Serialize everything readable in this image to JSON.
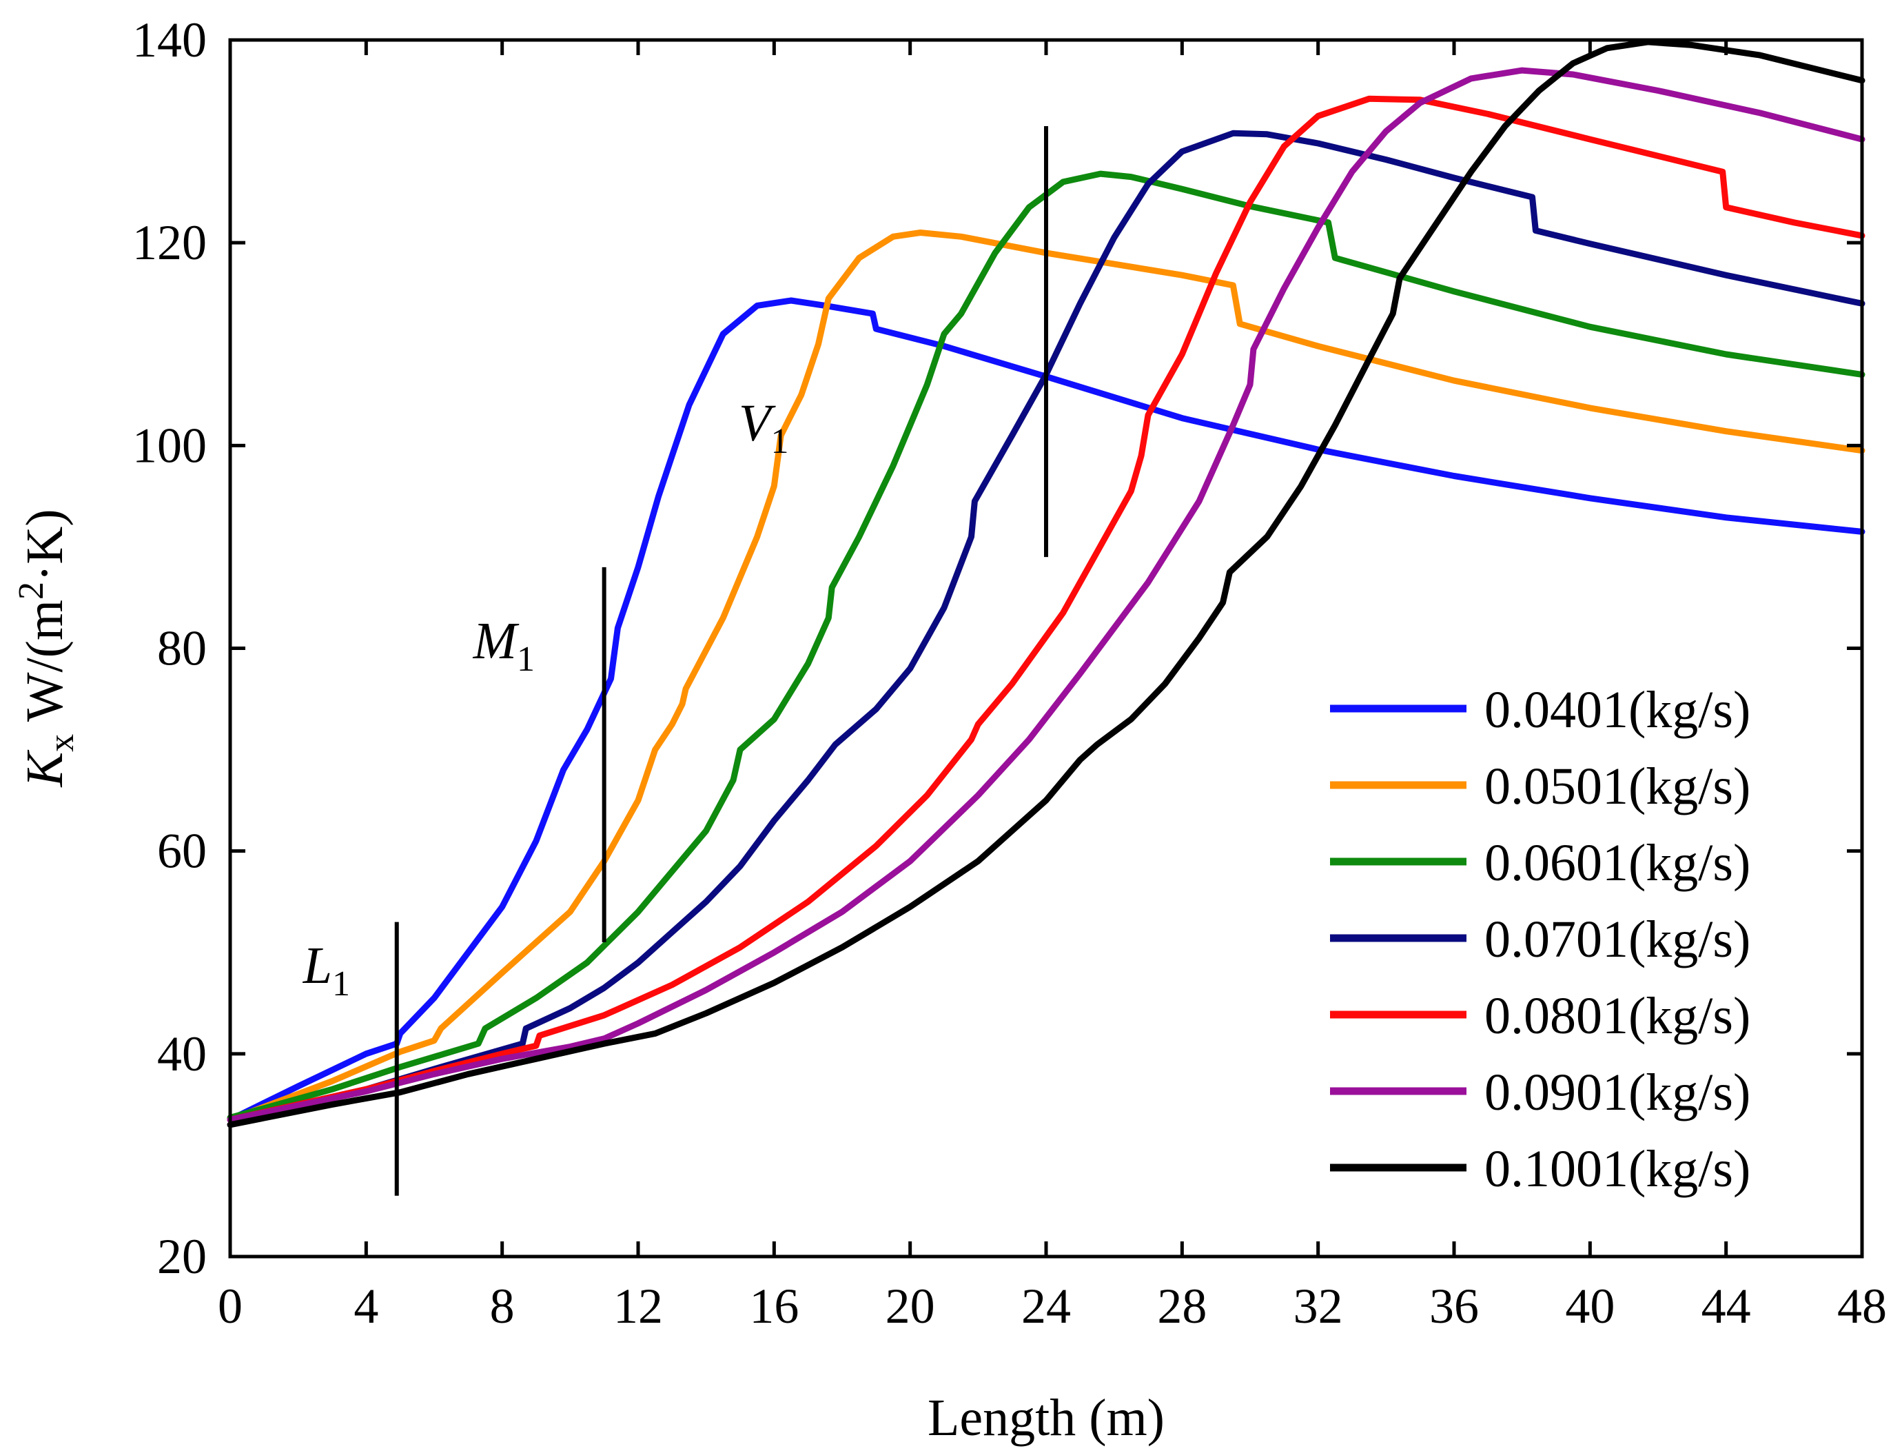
{
  "chart_data": {
    "type": "line",
    "title": "",
    "xlabel": "Length (m)",
    "ylabel": {
      "main": "K",
      "sub": "x",
      "unit_prefix": " W/(m",
      "sup": "2",
      "unit_suffix": "·K)"
    },
    "xlim": [
      0,
      48
    ],
    "ylim": [
      20,
      140
    ],
    "xticks": [
      0,
      4,
      8,
      12,
      16,
      20,
      24,
      28,
      32,
      36,
      40,
      44,
      48
    ],
    "yticks": [
      20,
      40,
      60,
      80,
      100,
      120,
      140
    ],
    "grid": false,
    "legend_position": "bottom-right",
    "series": [
      {
        "name": "0.0401(kg/s)",
        "color": "#1010ff",
        "points": [
          [
            0,
            33.5
          ],
          [
            2,
            36.8
          ],
          [
            4,
            40
          ],
          [
            4.9,
            41
          ],
          [
            5,
            42
          ],
          [
            6,
            45.5
          ],
          [
            7,
            50
          ],
          [
            8,
            54.5
          ],
          [
            9,
            61
          ],
          [
            9.8,
            68
          ],
          [
            10.5,
            72
          ],
          [
            11.2,
            77
          ],
          [
            11.4,
            82
          ],
          [
            12,
            88
          ],
          [
            12.6,
            95
          ],
          [
            13,
            99
          ],
          [
            13.5,
            104
          ],
          [
            14.5,
            111
          ],
          [
            15.5,
            113.8
          ],
          [
            16.5,
            114.3
          ],
          [
            17.5,
            113.8
          ],
          [
            18.9,
            113
          ],
          [
            19,
            111.5
          ],
          [
            21,
            109.8
          ],
          [
            24,
            106.8
          ],
          [
            28,
            102.7
          ],
          [
            32,
            99.6
          ],
          [
            36,
            97
          ],
          [
            40,
            94.8
          ],
          [
            44,
            92.9
          ],
          [
            48,
            91.5
          ]
        ]
      },
      {
        "name": "0.0501(kg/s)",
        "color": "#ff9000",
        "points": [
          [
            0,
            33.5
          ],
          [
            3,
            37.3
          ],
          [
            5,
            40.2
          ],
          [
            6,
            41.3
          ],
          [
            6.2,
            42.5
          ],
          [
            8,
            48
          ],
          [
            10,
            54
          ],
          [
            11,
            59
          ],
          [
            12,
            65
          ],
          [
            12.5,
            70
          ],
          [
            13,
            72.5
          ],
          [
            13.3,
            74.5
          ],
          [
            13.4,
            76
          ],
          [
            14.5,
            83
          ],
          [
            15.5,
            91
          ],
          [
            16,
            96
          ],
          [
            16.2,
            101
          ],
          [
            16.8,
            105
          ],
          [
            17.3,
            110
          ],
          [
            17.6,
            114.5
          ],
          [
            18.5,
            118.5
          ],
          [
            19.5,
            120.6
          ],
          [
            20.3,
            121
          ],
          [
            21.5,
            120.6
          ],
          [
            24,
            119
          ],
          [
            28,
            116.8
          ],
          [
            29.5,
            115.8
          ],
          [
            29.7,
            112
          ],
          [
            32,
            109.8
          ],
          [
            36,
            106.4
          ],
          [
            40,
            103.7
          ],
          [
            44,
            101.4
          ],
          [
            48,
            99.5
          ]
        ]
      },
      {
        "name": "0.0601(kg/s)",
        "color": "#0e8a0e",
        "points": [
          [
            0,
            33.7
          ],
          [
            3,
            36.5
          ],
          [
            5,
            38.7
          ],
          [
            7.3,
            41
          ],
          [
            7.5,
            42.5
          ],
          [
            9,
            45.5
          ],
          [
            10.5,
            49
          ],
          [
            12,
            54
          ],
          [
            13,
            58
          ],
          [
            14,
            62
          ],
          [
            14.8,
            67
          ],
          [
            15,
            70
          ],
          [
            16,
            73
          ],
          [
            17,
            78.5
          ],
          [
            17.6,
            83
          ],
          [
            17.7,
            86
          ],
          [
            18.5,
            91
          ],
          [
            19.5,
            98
          ],
          [
            20.5,
            106
          ],
          [
            21,
            111
          ],
          [
            21.5,
            113
          ],
          [
            22.5,
            119
          ],
          [
            23.5,
            123.5
          ],
          [
            24.5,
            126
          ],
          [
            25.6,
            126.8
          ],
          [
            26.5,
            126.5
          ],
          [
            28,
            125.3
          ],
          [
            30,
            123.6
          ],
          [
            32.3,
            122
          ],
          [
            32.5,
            118.5
          ],
          [
            36,
            115.2
          ],
          [
            40,
            111.7
          ],
          [
            44,
            109
          ],
          [
            48,
            107
          ]
        ]
      },
      {
        "name": "0.0701(kg/s)",
        "color": "#0a0a80",
        "points": [
          [
            0,
            33.5
          ],
          [
            4,
            36.5
          ],
          [
            6,
            38.5
          ],
          [
            8.6,
            41
          ],
          [
            8.7,
            42.5
          ],
          [
            10,
            44.5
          ],
          [
            11,
            46.5
          ],
          [
            12,
            49
          ],
          [
            13,
            52
          ],
          [
            14,
            55
          ],
          [
            15,
            58.5
          ],
          [
            16,
            63
          ],
          [
            17,
            67
          ],
          [
            17.8,
            70.5
          ],
          [
            19,
            74
          ],
          [
            20,
            78
          ],
          [
            21,
            84
          ],
          [
            21.8,
            91
          ],
          [
            21.9,
            94.5
          ],
          [
            23,
            101
          ],
          [
            24,
            107
          ],
          [
            25,
            114
          ],
          [
            26,
            120.5
          ],
          [
            27,
            125.8
          ],
          [
            28,
            129
          ],
          [
            29.5,
            130.8
          ],
          [
            30.5,
            130.7
          ],
          [
            32,
            129.8
          ],
          [
            34,
            128.2
          ],
          [
            36,
            126.4
          ],
          [
            38.3,
            124.5
          ],
          [
            38.4,
            121.2
          ],
          [
            40,
            119.9
          ],
          [
            44,
            116.8
          ],
          [
            48,
            114
          ]
        ]
      },
      {
        "name": "0.0801(kg/s)",
        "color": "#ff0a0a",
        "points": [
          [
            0,
            33.5
          ],
          [
            4,
            36.5
          ],
          [
            6,
            38.3
          ],
          [
            8,
            40
          ],
          [
            9,
            40.8
          ],
          [
            9.1,
            41.8
          ],
          [
            11,
            43.8
          ],
          [
            13,
            46.8
          ],
          [
            15,
            50.5
          ],
          [
            17,
            55
          ],
          [
            19,
            60.5
          ],
          [
            20.5,
            65.5
          ],
          [
            21.8,
            71
          ],
          [
            22,
            72.5
          ],
          [
            23,
            76.5
          ],
          [
            24.5,
            83.5
          ],
          [
            25.5,
            89.5
          ],
          [
            26.5,
            95.5
          ],
          [
            26.8,
            99
          ],
          [
            27,
            103
          ],
          [
            28,
            109
          ],
          [
            29,
            117
          ],
          [
            30,
            124
          ],
          [
            31,
            129.5
          ],
          [
            32,
            132.5
          ],
          [
            33.5,
            134.2
          ],
          [
            35,
            134.1
          ],
          [
            37,
            132.7
          ],
          [
            40,
            130.2
          ],
          [
            43.9,
            127
          ],
          [
            44,
            123.5
          ],
          [
            46,
            122
          ],
          [
            48,
            120.7
          ]
        ]
      },
      {
        "name": "0.0901(kg/s)",
        "color": "#9a109a",
        "points": [
          [
            0,
            33.5
          ],
          [
            4,
            36.3
          ],
          [
            6,
            38
          ],
          [
            8,
            39.5
          ],
          [
            10,
            40.7
          ],
          [
            11,
            41.5
          ],
          [
            12,
            43
          ],
          [
            14,
            46.3
          ],
          [
            16,
            50
          ],
          [
            18,
            54
          ],
          [
            20,
            59
          ],
          [
            22,
            65.5
          ],
          [
            23.5,
            71
          ],
          [
            25,
            77.5
          ],
          [
            27,
            86.5
          ],
          [
            28.5,
            94.5
          ],
          [
            29.5,
            102
          ],
          [
            30,
            106
          ],
          [
            30.1,
            109.5
          ],
          [
            31,
            115.5
          ],
          [
            32,
            121.5
          ],
          [
            33,
            127
          ],
          [
            34,
            131
          ],
          [
            35,
            133.8
          ],
          [
            36.5,
            136.2
          ],
          [
            38,
            137
          ],
          [
            39.5,
            136.6
          ],
          [
            42,
            135
          ],
          [
            45,
            132.8
          ],
          [
            48,
            130.2
          ]
        ]
      },
      {
        "name": "0.1001(kg/s)",
        "color": "#000000",
        "points": [
          [
            0,
            33
          ],
          [
            3,
            35
          ],
          [
            5,
            36.2
          ],
          [
            7,
            38
          ],
          [
            9,
            39.5
          ],
          [
            11,
            41
          ],
          [
            12.5,
            42
          ],
          [
            14,
            44
          ],
          [
            16,
            47
          ],
          [
            18,
            50.5
          ],
          [
            20,
            54.5
          ],
          [
            22,
            59
          ],
          [
            24,
            65
          ],
          [
            25,
            69
          ],
          [
            25.5,
            70.5
          ],
          [
            26.5,
            73
          ],
          [
            27.5,
            76.5
          ],
          [
            28.5,
            81
          ],
          [
            29.2,
            84.5
          ],
          [
            29.4,
            87.5
          ],
          [
            30.5,
            91
          ],
          [
            31.5,
            96
          ],
          [
            32.5,
            102
          ],
          [
            33.5,
            108.5
          ],
          [
            34.2,
            113
          ],
          [
            34.4,
            116.5
          ],
          [
            35.5,
            122
          ],
          [
            36.5,
            127
          ],
          [
            37.5,
            131.5
          ],
          [
            38.5,
            135
          ],
          [
            39.5,
            137.7
          ],
          [
            40.5,
            139.2
          ],
          [
            41.7,
            139.8
          ],
          [
            43,
            139.5
          ],
          [
            45,
            138.5
          ],
          [
            48,
            136
          ]
        ]
      }
    ],
    "annotations": [
      {
        "label": "L",
        "sub": "1",
        "x": 4.9,
        "y_from": 26,
        "y_to": 53
      },
      {
        "label": "M",
        "sub": "1",
        "x": 11,
        "y_from": 51,
        "y_to": 88
      },
      {
        "label": "V",
        "sub": "1",
        "x": 24,
        "y_from": 89,
        "y_to": 131.5
      }
    ]
  }
}
